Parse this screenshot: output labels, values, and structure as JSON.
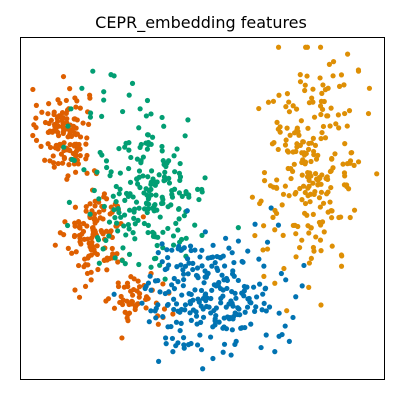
{
  "chart_data": {
    "type": "scatter",
    "title": "CEPR_embedding features",
    "xlabel": "",
    "ylabel": "",
    "xticks": [],
    "yticks": [],
    "grid": false,
    "legend": "none",
    "xlim": [
      0,
      100
    ],
    "ylim": [
      0,
      100
    ],
    "series": [
      {
        "color": "#de5f00",
        "clusters": [
          {
            "cx": 12,
            "cy": 72,
            "sx": 3.5,
            "sy": 6.5,
            "n": 130
          },
          {
            "cx": 21,
            "cy": 42,
            "sx": 4.0,
            "sy": 7.0,
            "n": 120
          },
          {
            "cx": 32,
            "cy": 24,
            "sx": 3.5,
            "sy": 3.5,
            "n": 50
          }
        ],
        "extra": [
          [
            4.5,
            80
          ],
          [
            6,
            78
          ],
          [
            7,
            75
          ],
          [
            10,
            68
          ],
          [
            28,
            12
          ],
          [
            38,
            16
          ],
          [
            42,
            19
          ]
        ]
      },
      {
        "color": "#029e73",
        "clusters": [
          {
            "cx": 35,
            "cy": 55,
            "sx": 8.5,
            "sy": 12.0,
            "n": 210
          }
        ],
        "extra": [
          [
            14,
            79
          ],
          [
            17,
            85
          ],
          [
            20,
            90
          ],
          [
            23,
            84
          ],
          [
            25,
            89
          ],
          [
            30,
            83
          ],
          [
            33,
            79
          ],
          [
            39,
            68
          ],
          [
            44,
            63
          ],
          [
            48,
            45
          ],
          [
            50,
            42
          ]
        ]
      },
      {
        "color": "#0173b2",
        "clusters": [
          {
            "cx": 52,
            "cy": 25,
            "sx": 9.0,
            "sy": 8.0,
            "n": 240
          }
        ],
        "extra": [
          [
            40,
            12
          ],
          [
            42,
            8
          ],
          [
            45,
            10
          ],
          [
            53,
            6
          ],
          [
            58,
            7
          ],
          [
            61,
            15
          ],
          [
            65,
            24
          ],
          [
            67,
            33
          ],
          [
            68,
            40
          ],
          [
            70,
            8
          ],
          [
            72,
            13
          ],
          [
            74,
            11
          ],
          [
            75,
            18
          ],
          [
            73,
            29
          ],
          [
            69,
            50
          ],
          [
            71,
            45
          ]
        ]
      },
      {
        "color": "#de8f05",
        "clusters": [
          {
            "cx": 80,
            "cy": 62,
            "sx": 7.0,
            "sy": 15.0,
            "n": 230
          }
        ],
        "extra": [
          [
            93,
            90
          ],
          [
            96,
            85
          ],
          [
            89,
            86
          ],
          [
            77,
            89
          ],
          [
            85,
            92
          ],
          [
            90,
            95
          ],
          [
            67,
            30
          ],
          [
            70,
            28
          ],
          [
            68,
            38
          ]
        ]
      }
    ]
  }
}
